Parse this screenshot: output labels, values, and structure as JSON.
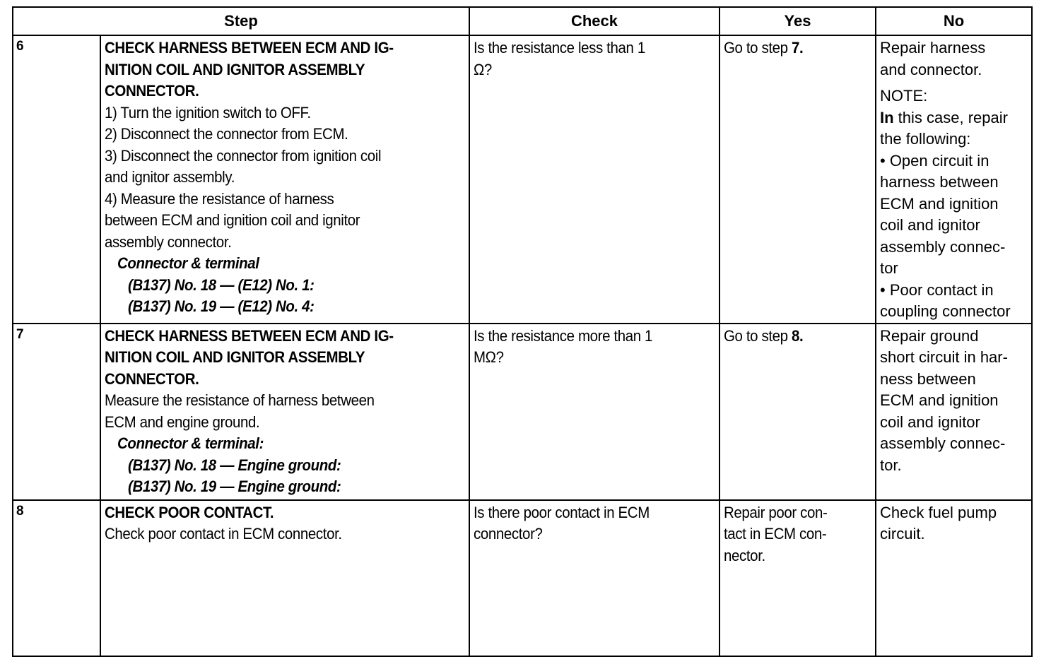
{
  "headers": {
    "step": "Step",
    "check": "Check",
    "yes": "Yes",
    "no": "No"
  },
  "rows": [
    {
      "number": "6",
      "step": [
        {
          "cls": "",
          "segs": [
            [
              "CHECK HARNESS BETWEEN ECM AND IG-",
              "b"
            ]
          ]
        },
        {
          "cls": "",
          "segs": [
            [
              "NITION COIL AND IGNITOR ASSEMBLY",
              "b"
            ]
          ]
        },
        {
          "cls": "",
          "segs": [
            [
              "CONNECTOR.",
              "b"
            ]
          ]
        },
        {
          "cls": "",
          "segs": [
            [
              "1)  Turn the ignition switch to OFF.",
              ""
            ]
          ]
        },
        {
          "cls": "",
          "segs": [
            [
              "2)  Disconnect the connector from ECM.",
              ""
            ]
          ]
        },
        {
          "cls": "",
          "segs": [
            [
              "3)  Disconnect the connector from ignition coil",
              ""
            ]
          ]
        },
        {
          "cls": "",
          "segs": [
            [
              "and ignitor assembly.",
              ""
            ]
          ]
        },
        {
          "cls": "",
          "segs": [
            [
              "4)  Measure the resistance of harness",
              ""
            ]
          ]
        },
        {
          "cls": "",
          "segs": [
            [
              "between ECM and ignition coil and ignitor",
              ""
            ]
          ]
        },
        {
          "cls": "",
          "segs": [
            [
              "assembly connector.",
              ""
            ]
          ]
        },
        {
          "cls": "i1",
          "segs": [
            [
              "Connector & terminal",
              "bi"
            ]
          ]
        },
        {
          "cls": "i2",
          "segs": [
            [
              "(B137) No. 18 — (E12) No. 1:",
              "bi"
            ]
          ]
        },
        {
          "cls": "i2",
          "segs": [
            [
              "(B137) No. 19 — (E12) No. 4:",
              "bi"
            ]
          ]
        }
      ],
      "check": [
        {
          "cls": "",
          "segs": [
            [
              "Is the resistance less than 1",
              ""
            ]
          ]
        },
        {
          "cls": "",
          "segs": [
            [
              "Ω?",
              ""
            ]
          ]
        }
      ],
      "yes": [
        {
          "cls": "",
          "segs": [
            [
              "Go to step ",
              ""
            ],
            [
              "7.",
              "b"
            ]
          ]
        }
      ],
      "no": [
        {
          "cls": "",
          "segs": [
            [
              "Repair harness",
              ""
            ]
          ]
        },
        {
          "cls": "",
          "segs": [
            [
              "and connector.",
              ""
            ]
          ]
        },
        {
          "cls": "gap",
          "segs": [
            [
              "NOTE:",
              ""
            ]
          ]
        },
        {
          "cls": "",
          "segs": [
            [
              "In",
              "b"
            ],
            [
              " this case, repair",
              ""
            ]
          ]
        },
        {
          "cls": "",
          "segs": [
            [
              "the following:",
              ""
            ]
          ]
        },
        {
          "cls": "",
          "segs": [
            [
              "•  Open circuit in",
              ""
            ]
          ]
        },
        {
          "cls": "",
          "segs": [
            [
              "harness between",
              ""
            ]
          ]
        },
        {
          "cls": "",
          "segs": [
            [
              "ECM and ignition",
              ""
            ]
          ]
        },
        {
          "cls": "",
          "segs": [
            [
              "coil and ignitor",
              ""
            ]
          ]
        },
        {
          "cls": "",
          "segs": [
            [
              "assembly connec-",
              ""
            ]
          ]
        },
        {
          "cls": "",
          "segs": [
            [
              "tor",
              ""
            ]
          ]
        },
        {
          "cls": "",
          "segs": [
            [
              "•  Poor contact in",
              ""
            ]
          ]
        },
        {
          "cls": "",
          "segs": [
            [
              "coupling connector",
              ""
            ]
          ]
        }
      ]
    },
    {
      "number": "7",
      "step": [
        {
          "cls": "",
          "segs": [
            [
              "CHECK HARNESS BETWEEN ECM AND IG-",
              "b"
            ]
          ]
        },
        {
          "cls": "",
          "segs": [
            [
              "NITION COIL AND IGNITOR ASSEMBLY",
              "b"
            ]
          ]
        },
        {
          "cls": "",
          "segs": [
            [
              "CONNECTOR.",
              "b"
            ]
          ]
        },
        {
          "cls": "",
          "segs": [
            [
              "Measure the resistance of harness between",
              ""
            ]
          ]
        },
        {
          "cls": "",
          "segs": [
            [
              "ECM and engine ground.",
              ""
            ]
          ]
        },
        {
          "cls": "i1",
          "segs": [
            [
              "Connector & terminal:",
              "bi"
            ]
          ]
        },
        {
          "cls": "i2",
          "segs": [
            [
              "(B137) No. 18 — Engine ground:",
              "bi"
            ]
          ]
        },
        {
          "cls": "i2",
          "segs": [
            [
              "(B137) No. 19 — Engine ground:",
              "bi"
            ]
          ]
        }
      ],
      "check": [
        {
          "cls": "",
          "segs": [
            [
              "Is the resistance more than 1",
              ""
            ]
          ]
        },
        {
          "cls": "",
          "segs": [
            [
              "MΩ?",
              ""
            ]
          ]
        }
      ],
      "yes": [
        {
          "cls": "",
          "segs": [
            [
              "Go to step ",
              ""
            ],
            [
              "8.",
              "b"
            ]
          ]
        }
      ],
      "no": [
        {
          "cls": "",
          "segs": [
            [
              "Repair ground",
              ""
            ]
          ]
        },
        {
          "cls": "",
          "segs": [
            [
              "short circuit in har-",
              ""
            ]
          ]
        },
        {
          "cls": "",
          "segs": [
            [
              "ness between",
              ""
            ]
          ]
        },
        {
          "cls": "",
          "segs": [
            [
              "ECM and ignition",
              ""
            ]
          ]
        },
        {
          "cls": "",
          "segs": [
            [
              "coil and ignitor",
              ""
            ]
          ]
        },
        {
          "cls": "",
          "segs": [
            [
              "assembly connec-",
              ""
            ]
          ]
        },
        {
          "cls": "",
          "segs": [
            [
              "tor.",
              ""
            ]
          ]
        }
      ]
    },
    {
      "number": "8",
      "step": [
        {
          "cls": "",
          "segs": [
            [
              "CHECK POOR CONTACT.",
              "b"
            ]
          ]
        },
        {
          "cls": "",
          "segs": [
            [
              "Check poor contact in ECM connector.",
              ""
            ]
          ]
        }
      ],
      "check": [
        {
          "cls": "",
          "segs": [
            [
              "Is there poor contact in ECM",
              ""
            ]
          ]
        },
        {
          "cls": "",
          "segs": [
            [
              "connector?",
              ""
            ]
          ]
        }
      ],
      "yes": [
        {
          "cls": "",
          "segs": [
            [
              "Repair poor con-",
              ""
            ]
          ]
        },
        {
          "cls": "",
          "segs": [
            [
              "tact in ECM con-",
              ""
            ]
          ]
        },
        {
          "cls": "",
          "segs": [
            [
              "nector.",
              ""
            ]
          ]
        }
      ],
      "no": [
        {
          "cls": "",
          "segs": [
            [
              "Check fuel pump",
              ""
            ]
          ]
        },
        {
          "cls": "",
          "segs": [
            [
              "circuit.",
              ""
            ]
          ]
        }
      ]
    }
  ]
}
